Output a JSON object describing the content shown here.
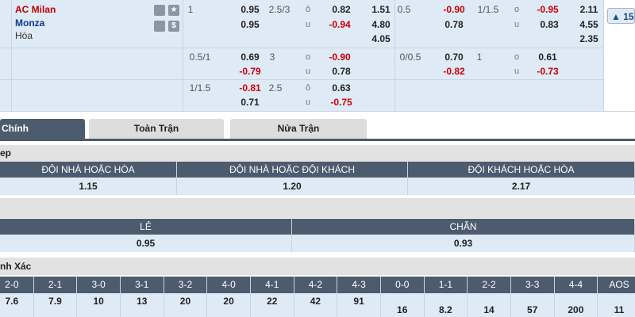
{
  "teams": {
    "home": "AC Milan",
    "away": "Monza",
    "draw": "Hòa"
  },
  "odds": {
    "row1": [
      "1",
      "0.95",
      "0.95",
      "2.5/3",
      "ô",
      "u",
      "0.82",
      "-0.94",
      "1.51",
      "4.80",
      "4.05",
      "0.5",
      "-0.90",
      "0.78",
      "1/1.5",
      "o",
      "u",
      "-0.95",
      "0.83",
      "2.11",
      "4.55",
      "2.35"
    ],
    "row2": [
      "0.5/1",
      "0.69",
      "-0.79",
      "3",
      "o",
      "u",
      "-0.90",
      "0.78",
      "0/0.5",
      "0.70",
      "-0.82",
      "1",
      "o",
      "u",
      "0.61",
      "-0.73"
    ],
    "row3": [
      "1/1.5",
      "-0.81",
      "0.71",
      "2.5",
      "ô",
      "u",
      "0.63",
      "-0.75"
    ]
  },
  "more_button": "15",
  "tabs": [
    "Chính",
    "Toàn Trận",
    "Nửa Trận"
  ],
  "double_chance": {
    "title": "ep",
    "headers": [
      "ĐỘI NHÀ HOẶC HÒA",
      "ĐỘI NHÀ HOẶC ĐỘI KHÁCH",
      "ĐỘI KHÁCH HOẶC HÒA"
    ],
    "values": [
      "1.15",
      "1.20",
      "2.17"
    ]
  },
  "odd_even": {
    "headers": [
      "LẺ",
      "CHẴN"
    ],
    "values": [
      "0.95",
      "0.93"
    ]
  },
  "correct_score": {
    "title": "nh Xác",
    "headers": [
      "2-0",
      "2-1",
      "3-0",
      "3-1",
      "3-2",
      "4-0",
      "4-1",
      "4-2",
      "4-3",
      "0-0",
      "1-1",
      "2-2",
      "3-3",
      "4-4",
      "AOS"
    ],
    "values": [
      "7.6",
      "7.9",
      "10",
      "13",
      "20",
      "20",
      "22",
      "42",
      "91",
      "16",
      "8.2",
      "14",
      "57",
      "200",
      "11"
    ]
  }
}
